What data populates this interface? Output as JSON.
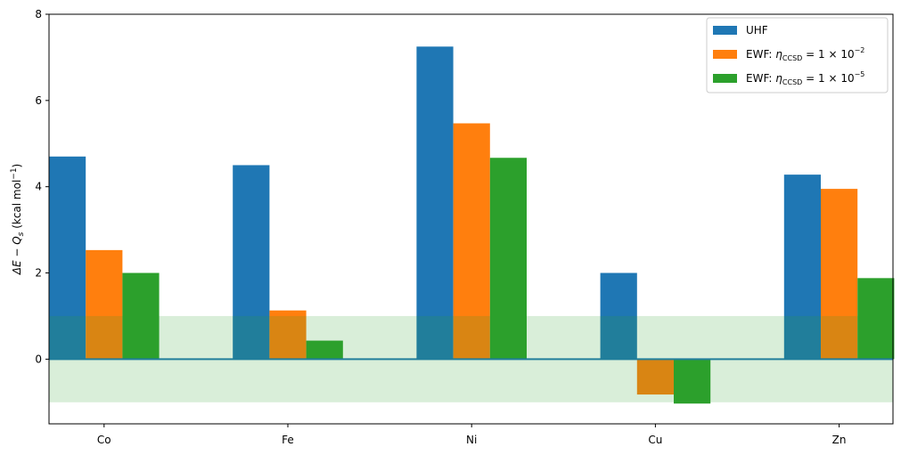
{
  "chart_data": {
    "type": "bar",
    "categories": [
      "Co",
      "Fe",
      "Ni",
      "Cu",
      "Zn"
    ],
    "series": [
      {
        "name": "UHF",
        "values": [
          4.7,
          4.5,
          7.25,
          2.0,
          4.28
        ],
        "color": "#1f77b4"
      },
      {
        "name_prefix": "EWF: ",
        "name_symbol": "η",
        "name_sub": "CCSD",
        "name_mid": " = 1 × 10",
        "name_exp": "−2",
        "values": [
          2.53,
          1.13,
          5.47,
          -0.82,
          3.95
        ],
        "color": "#ff7f0e"
      },
      {
        "name_prefix": "EWF: ",
        "name_symbol": "η",
        "name_sub": "CCSD",
        "name_mid": " = 1 × 10",
        "name_exp": "−5",
        "values": [
          2.0,
          0.43,
          4.67,
          -1.03,
          1.88
        ],
        "color": "#2ca02c"
      }
    ],
    "band": {
      "from": -1,
      "to": 1,
      "color": "#2ca02c",
      "opacity": 0.18
    },
    "zero_line_color": "#1f77b4",
    "ylim": [
      -1.5,
      8
    ],
    "yticks": [
      0,
      2,
      4,
      6,
      8
    ],
    "ylabel": {
      "prefix": "ΔE − Q",
      "sub": "s",
      "unit_pre": " (kcal mol",
      "unit_exp": "−1",
      "unit_post": ")"
    },
    "legend_position": "top-right",
    "grid": false
  }
}
